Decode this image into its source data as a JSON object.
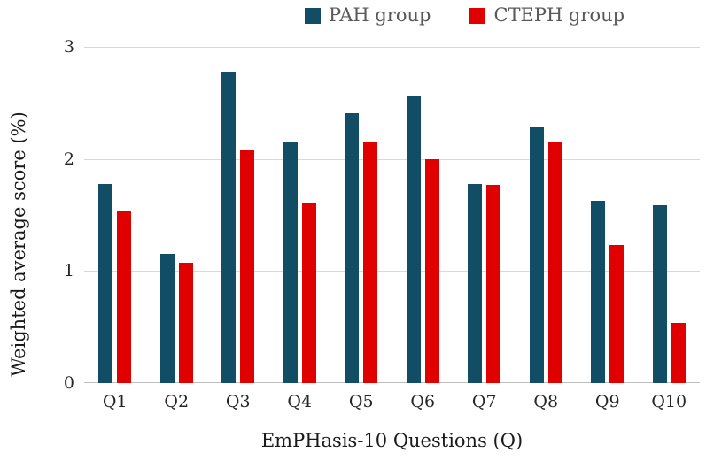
{
  "chart_data": {
    "type": "bar",
    "title": "",
    "categories": [
      "Q1",
      "Q2",
      "Q3",
      "Q4",
      "Q5",
      "Q6",
      "Q7",
      "Q8",
      "Q9",
      "Q10"
    ],
    "series": [
      {
        "name": "PAH group",
        "color": "#114D64",
        "values": [
          1.78,
          1.15,
          2.78,
          2.15,
          2.41,
          2.56,
          1.78,
          2.29,
          1.63,
          1.59
        ]
      },
      {
        "name": "CTEPH group",
        "color": "#E00000",
        "values": [
          1.54,
          1.07,
          2.08,
          1.61,
          2.15,
          2.0,
          1.77,
          2.15,
          1.23,
          0.54
        ]
      }
    ],
    "xlabel": "EmPHasis-10 Questions (Q)",
    "ylabel": "Weighted average score (%)",
    "ylim": [
      0,
      3
    ],
    "yticks": [
      0,
      1,
      2,
      3
    ],
    "grid": "horizontal",
    "legend_position": "top",
    "colors": {
      "gridline": "#D9D9D9",
      "axis_line": "#BFBFBF",
      "tick_label": "#262626",
      "legend_text": "#595959",
      "axis_title": "#1A1A1A"
    }
  }
}
